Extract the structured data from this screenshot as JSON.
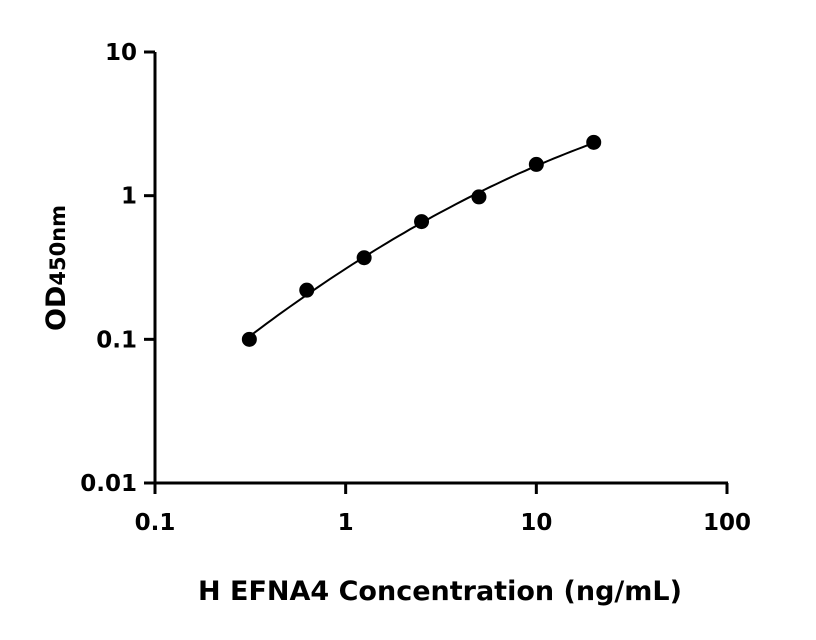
{
  "chart_data": {
    "type": "scatter",
    "title": "",
    "xlabel": "H EFNA4 Concentration (ng/mL)",
    "ylabel_main": "OD",
    "ylabel_sub": "450nm",
    "x_scale": "log",
    "y_scale": "log",
    "xlim": [
      0.1,
      100
    ],
    "ylim": [
      0.01,
      10
    ],
    "x_ticks": [
      {
        "value": 0.1,
        "label": "0.1"
      },
      {
        "value": 1,
        "label": "1"
      },
      {
        "value": 10,
        "label": "10"
      },
      {
        "value": 100,
        "label": "100"
      }
    ],
    "y_ticks": [
      {
        "value": 0.01,
        "label": "0.01"
      },
      {
        "value": 0.1,
        "label": "0.1"
      },
      {
        "value": 1,
        "label": "1"
      },
      {
        "value": 10,
        "label": "10"
      }
    ],
    "grid": false,
    "legend": "none",
    "series": [
      {
        "x": [
          0.3125,
          0.625,
          1.25,
          2.5,
          5,
          10,
          20
        ],
        "y": [
          0.1,
          0.22,
          0.37,
          0.66,
          0.98,
          1.65,
          2.35
        ],
        "marker": "circle",
        "color": "#000000",
        "fit": "smooth curve"
      }
    ]
  }
}
